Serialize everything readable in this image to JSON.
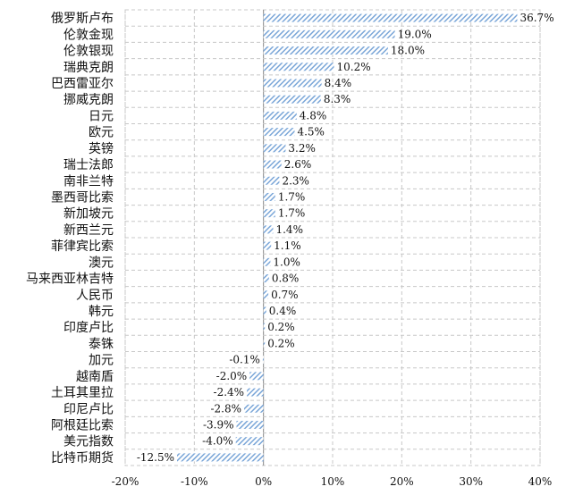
{
  "chart_data": {
    "type": "bar",
    "orientation": "horizontal",
    "categories": [
      "俄罗斯卢布",
      "伦敦金现",
      "伦敦银现",
      "瑞典克朗",
      "巴西雷亚尔",
      "挪威克朗",
      "日元",
      "欧元",
      "英镑",
      "瑞士法郎",
      "南非兰特",
      "墨西哥比索",
      "新加坡元",
      "新西兰元",
      "菲律宾比索",
      "澳元",
      "马来西亚林吉特",
      "人民币",
      "韩元",
      "印度卢比",
      "泰铢",
      "加元",
      "越南盾",
      "土耳其里拉",
      "印尼卢比",
      "阿根廷比索",
      "美元指数",
      "比特币期货"
    ],
    "values": [
      36.7,
      19.0,
      18.0,
      10.2,
      8.4,
      8.3,
      4.8,
      4.5,
      3.2,
      2.6,
      2.3,
      1.7,
      1.7,
      1.4,
      1.1,
      1.0,
      0.8,
      0.7,
      0.4,
      0.2,
      0.2,
      -0.1,
      -2.0,
      -2.4,
      -2.8,
      -3.9,
      -4.0,
      -12.5
    ],
    "value_labels": [
      "36.7%",
      "19.0%",
      "18.0%",
      "10.2%",
      "8.4%",
      "8.3%",
      "4.8%",
      "4.5%",
      "3.2%",
      "2.6%",
      "2.3%",
      "1.7%",
      "1.7%",
      "1.4%",
      "1.1%",
      "1.0%",
      "0.8%",
      "0.7%",
      "0.4%",
      "0.2%",
      "0.2%",
      "-0.1%",
      "-2.0%",
      "-2.4%",
      "-2.8%",
      "-3.9%",
      "-4.0%",
      "-12.5%"
    ],
    "x_ticks": [
      -20,
      -10,
      0,
      10,
      20,
      30,
      40
    ],
    "x_tick_labels": [
      "-20%",
      "-10%",
      "0%",
      "10%",
      "20%",
      "30%",
      "40%"
    ],
    "xlim": [
      -20,
      40
    ],
    "grid": true,
    "bar_color": "#7aa6d8",
    "title": "",
    "xlabel": "",
    "ylabel": ""
  }
}
